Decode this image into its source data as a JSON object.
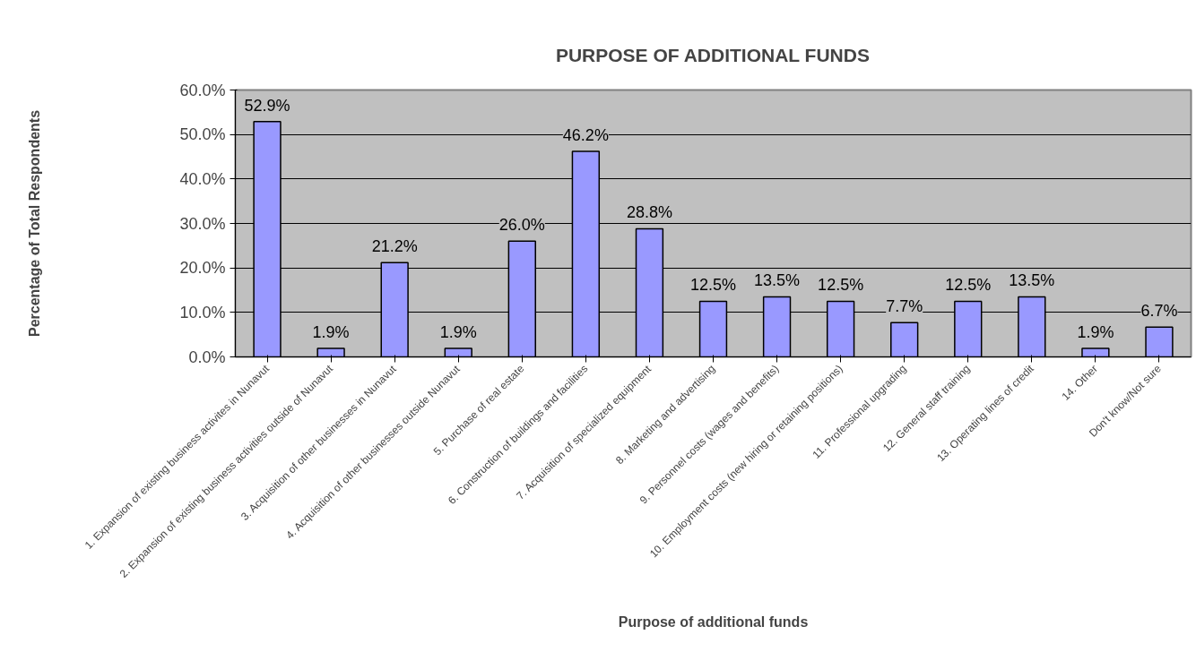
{
  "chart_data": {
    "type": "bar",
    "title": "PURPOSE OF ADDITIONAL FUNDS",
    "xlabel": "Purpose of additional funds",
    "ylabel": "Percentage of Total Respondents",
    "categories": [
      "1. Expansion of existing business activites in Nunavut",
      "2. Expansion of existing business activities outside of Nunavut",
      "3. Acquisition of other businesses in Nunavut",
      "4. Acquisition of other businesses outside Nunavut",
      "5. Purchase of real estate",
      "6. Construction of buildings and facilities",
      "7. Acquisition of specialized equipment",
      "8. Marketing and advertising",
      "9. Personnel costs (wages and benefits)",
      "10. Employment costs (new hiring or retaining positions)",
      "11. Professional upgrading",
      "12. General staff training",
      "13. Operating lines of credit",
      "14. Other",
      "Don't know/Not sure"
    ],
    "values": [
      52.9,
      1.9,
      21.2,
      1.9,
      26.0,
      46.2,
      28.8,
      12.5,
      13.5,
      12.5,
      7.7,
      12.5,
      13.5,
      1.9,
      6.7
    ],
    "value_labels": [
      "52.9%",
      "1.9%",
      "21.2%",
      "1.9%",
      "26.0%",
      "46.2%",
      "28.8%",
      "12.5%",
      "13.5%",
      "12.5%",
      "7.7%",
      "12.5%",
      "13.5%",
      "1.9%",
      "6.7%"
    ],
    "color": "#9999ff",
    "ylim": [
      0,
      60
    ],
    "yticks": [
      {
        "value": 0,
        "label": "0.0%"
      },
      {
        "value": 10,
        "label": "10.0%"
      },
      {
        "value": 20,
        "label": "20.0%"
      },
      {
        "value": 30,
        "label": "30.0%"
      },
      {
        "value": 40,
        "label": "40.0%"
      },
      {
        "value": 50,
        "label": "50.0%"
      },
      {
        "value": 60,
        "label": "60.0%"
      }
    ],
    "grid": "y"
  }
}
